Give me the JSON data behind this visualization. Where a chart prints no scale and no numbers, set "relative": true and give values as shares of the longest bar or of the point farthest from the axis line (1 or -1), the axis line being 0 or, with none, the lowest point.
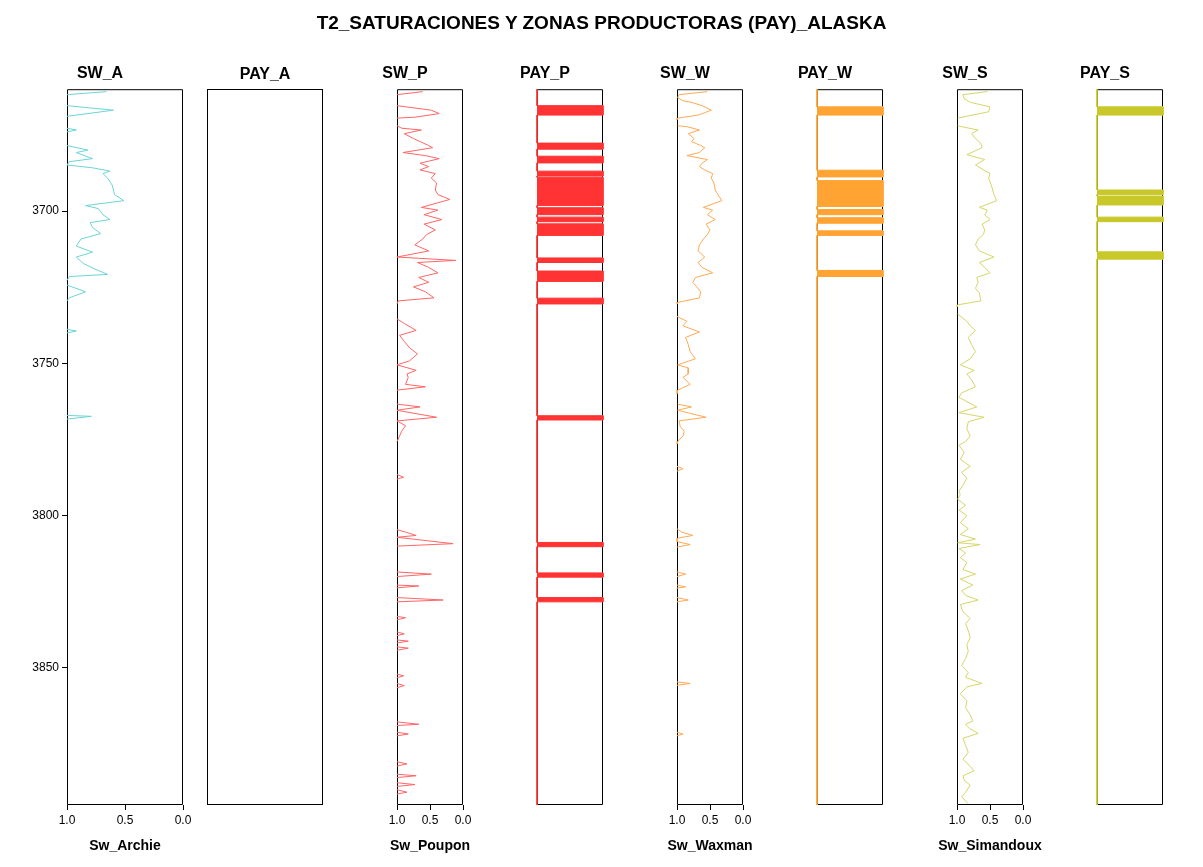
{
  "chart_data": [
    {
      "type": "other",
      "title": "T2_SATURACIONES Y ZONAS PRODUCTORAS (PAY)_ALASKA"
    },
    {
      "type": "line",
      "orientation": "horizontal",
      "title": "SW_A",
      "xlabel": "Sw_Archie",
      "color": "#6dd5d5",
      "xlim": [
        1,
        0
      ],
      "xticks": [
        {
          "value": 1,
          "label": "1.0"
        },
        {
          "value": 0.5,
          "label": "0.5"
        },
        {
          "value": 0,
          "label": "0.0"
        }
      ],
      "ylim": [
        3895,
        3660
      ],
      "yticks": [
        3700,
        3750,
        3800,
        3850
      ],
      "x": [
        3660.8,
        3661.8,
        3663,
        3665.4,
        3666.9,
        3668.9,
        3670,
        3672.8,
        3673.4,
        3674,
        3675,
        3678.5,
        3680,
        3680.8,
        3682.8,
        3683.8,
        3684.9,
        3685.8,
        3686.9,
        3687.7,
        3689.2,
        3691.5,
        3694.6,
        3696.6,
        3698.2,
        3699.2,
        3701.2,
        3702.8,
        3703.8,
        3705.4,
        3707.4,
        3709.2,
        3711.5,
        3713.5,
        3715.1,
        3717.2,
        3719.2,
        3720.8,
        3721.5,
        3722.8,
        3723.5,
        3724.3,
        3726.5,
        3728.5,
        3729.5,
        3730,
        3738.8,
        3739.4,
        3740,
        3741,
        3767.1,
        3767.4,
        3768.3
      ],
      "values": [
        0.66,
        1.0,
        null,
        1.0,
        0.6,
        1.0,
        null,
        1.0,
        0.92,
        1.0,
        null,
        1.0,
        0.82,
        0.92,
        0.78,
        0.98,
        1.0,
        0.78,
        0.63,
        0.69,
        0.65,
        0.61,
        0.59,
        0.51,
        0.84,
        0.73,
        0.69,
        0.63,
        0.8,
        0.78,
        0.71,
        0.88,
        0.92,
        0.78,
        0.92,
        0.86,
        0.75,
        0.65,
        0.98,
        1.0,
        null,
        1.0,
        0.84,
        0.98,
        1.0,
        null,
        1.0,
        0.92,
        1.0,
        null,
        1.0,
        0.79,
        1.0
      ]
    },
    {
      "type": "other",
      "title": "PAY_A"
    },
    {
      "type": "line",
      "orientation": "horizontal",
      "title": "SW_P",
      "xlabel": "Sw_Poupon",
      "color": "#ff6666",
      "xlim": [
        1,
        0
      ],
      "xticks": [
        {
          "value": 1,
          "label": "1.0"
        },
        {
          "value": 0.5,
          "label": "0.5"
        },
        {
          "value": 0,
          "label": "0.0"
        }
      ],
      "ylim": [
        3895,
        3660
      ],
      "tick_labels": "x",
      "x": [
        3660.8,
        3661.8,
        3663,
        3665.4,
        3666.9,
        3668,
        3669.2,
        3669.5,
        3671,
        3672,
        3672.8,
        3673.4,
        3674.6,
        3676.2,
        3677.2,
        3678.5,
        3679.2,
        3680.8,
        3681.8,
        3682.8,
        3684.3,
        3685.4,
        3686.5,
        3687.7,
        3689.2,
        3690.8,
        3693.1,
        3694.6,
        3696.2,
        3698.8,
        3699.7,
        3701.2,
        3702.8,
        3704.3,
        3706.2,
        3707.7,
        3709.2,
        3711.1,
        3713.1,
        3715.1,
        3716.2,
        3716.9,
        3718.5,
        3720.3,
        3721.8,
        3723.4,
        3724.9,
        3726.5,
        3728.5,
        3729.5,
        3730.5,
        3732,
        3735.4,
        3736.9,
        3739.2,
        3740.8,
        3742.8,
        3744.9,
        3746.9,
        3749.2,
        3750.5,
        3752.3,
        3753.5,
        3754.6,
        3756.9,
        3757.7,
        3758.8,
        3760,
        3763.4,
        3764.3,
        3765.4,
        3767.7,
        3768.9,
        3770.5,
        3772.3,
        3773.8,
        3775.7,
        3777,
        3786.5,
        3787.4,
        3788,
        3789,
        3804.6,
        3805.4,
        3806.5,
        3807.1,
        3809.2,
        3810,
        3811,
        3818.5,
        3819.2,
        3820,
        3821,
        3822.8,
        3823.1,
        3823.7,
        3825,
        3826.9,
        3827.7,
        3828.3,
        3830,
        3833.1,
        3833.5,
        3834.2,
        3836,
        3838.2,
        3838.8,
        3839.4,
        3840,
        3840.8,
        3841.2,
        3841.8,
        3842.5,
        3843.1,
        3843.5,
        3844.2,
        3846,
        3852,
        3852.6,
        3853.2,
        3854,
        3855.1,
        3855.8,
        3856.5,
        3860,
        3867.7,
        3868.5,
        3868.9,
        3870,
        3871.1,
        3871.7,
        3872.3,
        3875,
        3880.8,
        3881.5,
        3882.2,
        3883,
        3884.9,
        3885.4,
        3886,
        3887,
        3887.7,
        3888.3,
        3888.9,
        3889.5,
        3890,
        3890.8,
        3891.4
      ],
      "values": [
        0.61,
        1.0,
        null,
        1.0,
        0.48,
        0.36,
        0.73,
        1.0,
        null,
        1.0,
        0.93,
        0.63,
        0.89,
        0.75,
        0.65,
        0.52,
        0.46,
        0.91,
        0.57,
        0.36,
        0.65,
        0.52,
        0.65,
        0.42,
        0.48,
        0.4,
        0.42,
        0.38,
        0.2,
        0.63,
        0.38,
        0.59,
        0.32,
        0.59,
        0.42,
        0.55,
        0.61,
        0.73,
        0.52,
        1.0,
        0.11,
        0.69,
        0.52,
        0.38,
        0.67,
        0.52,
        0.75,
        0.57,
        0.44,
        0.98,
        1.0,
        null,
        1.0,
        0.89,
        0.71,
        0.96,
        0.89,
        0.81,
        0.69,
        0.81,
        1.0,
        0.71,
        0.85,
        0.83,
        0.87,
        0.57,
        1.0,
        null,
        1.0,
        0.65,
        1.0,
        0.4,
        1.0,
        0.87,
        0.93,
        0.96,
        1.0,
        null,
        1.0,
        0.9,
        1.0,
        null,
        1.0,
        0.87,
        0.71,
        1.0,
        0.15,
        1.0,
        null,
        1.0,
        0.48,
        1.0,
        null,
        1.0,
        0.67,
        1.0,
        null,
        1.0,
        0.3,
        1.0,
        null,
        1.0,
        0.87,
        1.0,
        null,
        1.0,
        0.89,
        1.0,
        null,
        1.0,
        0.83,
        1.0,
        null,
        1.0,
        0.83,
        1.0,
        null,
        1.0,
        0.9,
        1.0,
        null,
        1.0,
        0.89,
        1.0,
        null,
        1.0,
        0.67,
        1.0,
        null,
        1.0,
        0.83,
        1.0,
        null,
        1.0,
        0.85,
        1.0,
        null,
        1.0,
        0.71,
        1.0,
        null,
        1.0,
        0.73,
        1.0,
        null,
        1.0,
        0.85,
        1.0
      ]
    },
    {
      "type": "area",
      "orientation": "horizontal",
      "relative": true,
      "title": "PAY_P",
      "color": "#ff3333",
      "ylim": [
        3895,
        3660
      ],
      "yticks": [
        3700,
        3750,
        3800,
        3850
      ],
      "tick_labels": false,
      "x": [
        3660,
        3665.4,
        3665.4,
        3668.5,
        3668.5,
        3677.7,
        3677.7,
        3679.7,
        3679.7,
        3682.0,
        3682.0,
        3684.2,
        3684.2,
        3686.9,
        3686.9,
        3688.5,
        3688.5,
        3688.9,
        3688.9,
        3698.2,
        3698.2,
        3698.9,
        3698.9,
        3701.2,
        3701.2,
        3702.0,
        3702.0,
        3703.5,
        3703.5,
        3704.2,
        3704.2,
        3708.0,
        3708.0,
        3715.4,
        3715.4,
        3716.9,
        3716.9,
        3719.7,
        3719.7,
        3723.1,
        3723.1,
        3728.6,
        3728.6,
        3730.5,
        3730.5,
        3767.2,
        3767.2,
        3768.6,
        3768.6,
        3808.8,
        3808.8,
        3810.2,
        3810.2,
        3818.8,
        3818.8,
        3820.2,
        3820.2,
        3826.9,
        3826.9,
        3828.3,
        3828.3,
        3895
      ],
      "values": [
        0,
        0,
        1,
        1,
        0,
        0,
        1,
        1,
        0,
        0,
        1,
        1,
        0,
        0,
        1,
        1,
        0,
        0,
        1,
        1,
        0,
        0,
        1,
        1,
        0,
        0,
        1,
        1,
        0,
        0,
        1,
        1,
        0,
        0,
        1,
        1,
        0,
        0,
        1,
        1,
        0,
        0,
        1,
        1,
        0,
        0,
        1,
        1,
        0,
        0,
        1,
        1,
        0,
        0,
        1,
        1,
        0,
        0,
        1,
        1,
        0,
        0
      ]
    },
    {
      "type": "line",
      "orientation": "horizontal",
      "title": "SW_W",
      "xlabel": "Sw_Waxman",
      "color": "#ffaa55",
      "xlim": [
        1,
        0
      ],
      "xticks": [
        {
          "value": 1,
          "label": "1.0"
        },
        {
          "value": 0.5,
          "label": "0.5"
        },
        {
          "value": 0,
          "label": "0.0"
        }
      ],
      "ylim": [
        3895,
        3660
      ],
      "tick_labels": "x",
      "x": [
        3660.8,
        3661.8,
        3662.8,
        3663.8,
        3664.3,
        3665.4,
        3666.9,
        3668.5,
        3669.5,
        3670,
        3671,
        3672,
        3672.3,
        3673.4,
        3674.6,
        3676.2,
        3677.2,
        3678.5,
        3679.2,
        3680.8,
        3681.8,
        3683.1,
        3684.3,
        3685.4,
        3686.5,
        3687.7,
        3689.2,
        3690.8,
        3693.1,
        3694.6,
        3696.6,
        3698.8,
        3699.7,
        3701.2,
        3702.8,
        3704.3,
        3706.2,
        3707.7,
        3709.2,
        3711.1,
        3713.1,
        3715.1,
        3716.9,
        3718.5,
        3720.3,
        3721.8,
        3723.4,
        3724.9,
        3726.5,
        3728.5,
        3730,
        3730.5,
        3732,
        3734.6,
        3736.2,
        3737.7,
        3739.7,
        3741.5,
        3743.8,
        3746.2,
        3748.5,
        3750.5,
        3751.5,
        3753.5,
        3754.6,
        3756.9,
        3758.8,
        3760,
        3761,
        3763.4,
        3764.3,
        3765.4,
        3767.7,
        3768.9,
        3770.8,
        3772.3,
        3773.8,
        3775.7,
        3776.5,
        3777,
        3783.8,
        3784.6,
        3785.4,
        3786,
        3804.3,
        3805.4,
        3806.5,
        3807.4,
        3808.5,
        3809.5,
        3810.3,
        3812,
        3818.5,
        3819.2,
        3820,
        3821,
        3822.8,
        3823.4,
        3823.8,
        3825,
        3826.9,
        3827.7,
        3828.3,
        3830,
        3854.6,
        3855.1,
        3855.7,
        3857,
        3871.1,
        3871.7,
        3872.3
      ],
      "values": [
        0.54,
        0.97,
        0.99,
        0.91,
        0.78,
        0.62,
        0.48,
        0.68,
        0.99,
        1.0,
        null,
        0.99,
        0.85,
        0.66,
        0.83,
        0.74,
        0.78,
        0.64,
        0.58,
        0.66,
        0.85,
        0.54,
        0.62,
        0.66,
        0.58,
        0.46,
        0.48,
        0.44,
        0.42,
        0.38,
        0.32,
        0.6,
        0.46,
        0.54,
        0.42,
        0.56,
        0.5,
        0.54,
        0.6,
        0.66,
        0.68,
        0.58,
        0.68,
        0.62,
        0.46,
        0.72,
        0.76,
        0.7,
        0.64,
        0.66,
        0.99,
        1.0,
        null,
        1.0,
        0.85,
        0.91,
        0.66,
        0.87,
        0.83,
        0.8,
        0.72,
        0.99,
        0.83,
        0.83,
        0.91,
        0.8,
        0.99,
        1.0,
        null,
        0.99,
        0.78,
        0.99,
        0.56,
        0.97,
        0.95,
        0.89,
        0.91,
        0.99,
        1.0,
        null,
        1.0,
        0.91,
        1.0,
        null,
        1.0,
        0.93,
        0.76,
        0.99,
        1.0,
        0.8,
        1.0,
        null,
        1.0,
        0.87,
        1.0,
        null,
        1.0,
        0.87,
        1.0,
        null,
        1.0,
        0.83,
        1.0,
        null,
        1.0,
        0.8,
        1.0,
        null,
        1.0,
        0.91,
        1.0
      ]
    },
    {
      "type": "area",
      "orientation": "horizontal",
      "relative": true,
      "title": "PAY_W",
      "color": "#ffa333",
      "ylim": [
        3895,
        3660
      ],
      "yticks": [
        3700,
        3750,
        3800,
        3850
      ],
      "tick_labels": false,
      "x": [
        3660,
        3665.8,
        3665.8,
        3668.5,
        3668.5,
        3686.6,
        3686.6,
        3688.8,
        3688.8,
        3690.0,
        3690.0,
        3698.5,
        3698.5,
        3699.5,
        3699.5,
        3701.2,
        3701.2,
        3702.2,
        3702.2,
        3704.0,
        3704.0,
        3706.5,
        3706.5,
        3708.0,
        3708.0,
        3719.5,
        3719.5,
        3721.5,
        3721.5,
        3895
      ],
      "values": [
        0,
        0,
        1,
        1,
        0,
        0,
        1,
        1,
        0,
        0,
        1,
        1,
        0,
        0,
        1,
        1,
        0,
        0,
        1,
        1,
        0,
        0,
        1,
        1,
        0,
        0,
        1,
        1,
        0,
        0
      ]
    },
    {
      "type": "line",
      "orientation": "horizontal",
      "title": "SW_S",
      "xlabel": "Sw_Simandoux",
      "color": "#d6d66a",
      "xlim": [
        1,
        0
      ],
      "xticks": [
        {
          "value": 1,
          "label": "1.0"
        },
        {
          "value": 0.5,
          "label": "0.5"
        },
        {
          "value": 0,
          "label": "0.0"
        }
      ],
      "ylim": [
        3895,
        3660
      ],
      "tick_labels": "x",
      "x": [
        3660.8,
        3661.8,
        3663.1,
        3664.3,
        3665.8,
        3667.4,
        3669.5,
        3670.5,
        3672,
        3672.3,
        3673.4,
        3674.6,
        3676.2,
        3677.7,
        3679.2,
        3681.5,
        3683.1,
        3684.9,
        3686.2,
        3687.7,
        3689.2,
        3691.5,
        3694.6,
        3696.6,
        3698.8,
        3699.7,
        3701.2,
        3702.8,
        3704.3,
        3706.2,
        3707.7,
        3709.2,
        3711.1,
        3713.1,
        3715.1,
        3716.9,
        3718.5,
        3720.3,
        3721.8,
        3723.4,
        3725.4,
        3726.9,
        3729.5,
        3730.8,
        3731.5,
        3732.5,
        3733.8,
        3736.2,
        3737.7,
        3739.2,
        3741.5,
        3743.8,
        3746.2,
        3748.5,
        3750.5,
        3752.3,
        3753.5,
        3755.4,
        3757.7,
        3759.7,
        3761.2,
        3764.3,
        3766.2,
        3767.7,
        3769.2,
        3771.5,
        3773.8,
        3775.7,
        3776.9,
        3779.2,
        3781.5,
        3783.8,
        3785.8,
        3787.7,
        3790,
        3792,
        3793.1,
        3794.6,
        3796.6,
        3798.2,
        3800,
        3802.3,
        3804.3,
        3806.2,
        3807.7,
        3808.9,
        3809.5,
        3810.8,
        3812.3,
        3813.8,
        3815.4,
        3817.7,
        3819.2,
        3820.8,
        3822.8,
        3824.6,
        3826.2,
        3827.7,
        3829.2,
        3831.5,
        3833.8,
        3835.4,
        3837.7,
        3840,
        3842.3,
        3844.6,
        3846.9,
        3849.2,
        3851.5,
        3853.1,
        3855.1,
        3856.2,
        3858.5,
        3860.8,
        3863.1,
        3865.4,
        3867.4,
        3868.5,
        3870,
        3871.5,
        3873.1,
        3875.4,
        3877.7,
        3880,
        3882.3,
        3883.8,
        3885.4,
        3886.9,
        3888.5,
        3890.8,
        3892.3,
        3894.6
      ],
      "values": [
        0.54,
        0.91,
        0.89,
        0.8,
        0.5,
        0.52,
        0.99,
        null,
        0.99,
        0.93,
        0.68,
        0.78,
        0.72,
        0.64,
        0.62,
        0.85,
        0.58,
        0.72,
        0.62,
        0.5,
        0.52,
        0.48,
        0.44,
        0.4,
        0.66,
        0.54,
        0.58,
        0.5,
        0.62,
        0.58,
        0.6,
        0.68,
        0.72,
        0.66,
        0.44,
        0.66,
        0.58,
        0.5,
        0.7,
        0.68,
        0.72,
        0.66,
        0.64,
        0.99,
        1.0,
        null,
        0.99,
        0.85,
        0.8,
        0.72,
        0.83,
        0.78,
        0.72,
        0.8,
        0.95,
        0.74,
        0.85,
        0.78,
        0.72,
        0.93,
        0.97,
        0.7,
        0.97,
        0.59,
        0.83,
        0.85,
        0.8,
        0.87,
        0.97,
        0.89,
        0.95,
        0.8,
        0.93,
        0.85,
        0.91,
        0.97,
        0.95,
        0.99,
        0.87,
        0.97,
        0.85,
        0.95,
        0.83,
        0.95,
        0.72,
        0.99,
        0.65,
        0.97,
        0.87,
        0.95,
        0.85,
        0.91,
        0.72,
        0.95,
        0.76,
        0.93,
        0.87,
        0.68,
        0.95,
        0.91,
        0.8,
        0.87,
        0.83,
        0.8,
        0.85,
        0.83,
        0.87,
        0.93,
        0.83,
        0.87,
        0.62,
        0.85,
        0.95,
        0.85,
        0.87,
        0.8,
        0.76,
        0.87,
        0.8,
        0.68,
        0.91,
        0.87,
        0.83,
        0.91,
        0.8,
        0.74,
        0.91,
        0.89,
        0.8,
        0.87,
        0.93,
        0.83
      ]
    },
    {
      "type": "area",
      "orientation": "horizontal",
      "relative": true,
      "title": "PAY_S",
      "color": "#c8c82a",
      "ylim": [
        3895,
        3660
      ],
      "yticks": [
        3700,
        3750,
        3800,
        3850
      ],
      "tick_labels": false,
      "x": [
        3660,
        3665.8,
        3665.8,
        3668.5,
        3668.5,
        3693.1,
        3693.1,
        3694.6,
        3694.6,
        3695.1,
        3695.1,
        3698.0,
        3698.0,
        3702.0,
        3702.0,
        3703.5,
        3703.5,
        3713.4,
        3713.4,
        3715.8,
        3715.8,
        3895
      ],
      "values": [
        0,
        0,
        1,
        1,
        0,
        0,
        1,
        1,
        0,
        0,
        1,
        1,
        0,
        0,
        1,
        1,
        0,
        0,
        1,
        1,
        0,
        0
      ]
    }
  ]
}
